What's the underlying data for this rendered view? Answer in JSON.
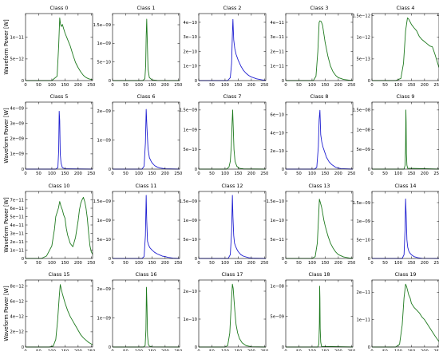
{
  "figure": {
    "ylabel": "Waveform Power [W]",
    "xlabel": "Range Bin",
    "xticks": [
      0,
      50,
      100,
      150,
      200,
      250
    ],
    "colors": {
      "green": "#1e7a1e",
      "blue": "#1f1fd1",
      "axis": "#000000"
    }
  },
  "chart_data": [
    {
      "type": "line",
      "title": "Class 0",
      "color": "green",
      "ylim": [
        0,
        1.55e-11
      ],
      "yticks": [
        5e-12,
        1e-11
      ],
      "ytick_labels": [
        "5e−12",
        "1e−11"
      ],
      "xlim": [
        0,
        255
      ],
      "x": [
        0,
        100,
        120,
        126,
        130,
        133,
        136,
        140,
        145,
        150,
        160,
        170,
        180,
        190,
        200,
        210,
        220,
        230,
        240,
        255
      ],
      "y": [
        0,
        0,
        1e-12,
        8e-12,
        1.45e-11,
        1.3e-11,
        1.25e-11,
        1.3e-11,
        1.2e-11,
        1.1e-11,
        9.5e-12,
        8e-12,
        6e-12,
        4.2e-12,
        3e-12,
        2e-12,
        1.2e-12,
        7e-13,
        4e-13,
        2e-13
      ]
    },
    {
      "type": "line",
      "title": "Class 1",
      "color": "green",
      "ylim": [
        0,
        1.8e-09
      ],
      "yticks": [
        5e-10,
        1e-09,
        1.5e-09
      ],
      "ytick_labels": [
        "5e−10",
        "1e−09",
        "1.5e−09"
      ],
      "xlim": [
        0,
        255
      ],
      "x": [
        0,
        115,
        123,
        126,
        128,
        130,
        132,
        135,
        140,
        150,
        170,
        255
      ],
      "y": [
        0,
        0,
        5e-11,
        4e-10,
        1.2e-09,
        1.65e-09,
        1.1e-09,
        3e-10,
        8e-11,
        2e-11,
        5e-12,
        0
      ]
    },
    {
      "type": "line",
      "title": "Class 2",
      "color": "blue",
      "ylim": [
        0,
        4.6e-10
      ],
      "yticks": [
        1e-10,
        2e-10,
        3e-10,
        4e-10
      ],
      "ytick_labels": [
        "1e−10",
        "2e−10",
        "3e−10",
        "4e−10"
      ],
      "xlim": [
        0,
        255
      ],
      "x": [
        0,
        110,
        120,
        125,
        128,
        130,
        133,
        137,
        142,
        150,
        160,
        170,
        180,
        190,
        200,
        220,
        240,
        255
      ],
      "y": [
        0,
        0,
        2e-11,
        1.2e-10,
        3.2e-10,
        4.2e-10,
        2.8e-10,
        2.2e-10,
        1.8e-10,
        1.4e-10,
        1e-10,
        7e-11,
        5e-11,
        3.5e-11,
        2.5e-11,
        1.2e-11,
        5e-12,
        2e-12
      ]
    },
    {
      "type": "line",
      "title": "Class 3",
      "color": "green",
      "ylim": [
        0,
        4.6e-11
      ],
      "yticks": [
        1e-11,
        2e-11,
        3e-11,
        4e-11
      ],
      "ytick_labels": [
        "1e−11",
        "2e−11",
        "3e−11",
        "4e−11"
      ],
      "xlim": [
        0,
        255
      ],
      "x": [
        0,
        105,
        115,
        122,
        127,
        130,
        135,
        140,
        145,
        150,
        160,
        170,
        180,
        190,
        200,
        220,
        240,
        255
      ],
      "y": [
        0,
        0,
        3e-12,
        2e-11,
        4e-11,
        4.1e-11,
        4.05e-11,
        3.8e-11,
        3.2e-11,
        2.6e-11,
        1.7e-11,
        1e-11,
        6e-12,
        3.5e-12,
        2e-12,
        8e-13,
        3e-13,
        1e-13
      ]
    },
    {
      "type": "line",
      "title": "Class 4",
      "color": "green",
      "ylim": [
        0,
        1.55e-12
      ],
      "yticks": [
        5e-13,
        1e-12,
        1.5e-12
      ],
      "ytick_labels": [
        "5e−13",
        "1e−12",
        "1.5e−12"
      ],
      "xlim": [
        0,
        255
      ],
      "x": [
        0,
        90,
        110,
        120,
        128,
        135,
        140,
        150,
        160,
        170,
        180,
        190,
        200,
        210,
        220,
        230,
        240,
        250,
        255
      ],
      "y": [
        0,
        0,
        5e-14,
        4e-13,
        1.15e-12,
        1.45e-12,
        1.42e-12,
        1.3e-12,
        1.22e-12,
        1.15e-12,
        1.02e-12,
        9.5e-13,
        9e-13,
        8.5e-13,
        8e-13,
        7.8e-13,
        6e-13,
        4e-13,
        3e-13
      ]
    },
    {
      "type": "line",
      "title": "Class 5",
      "color": "blue",
      "ylim": [
        0,
        4.4e-09
      ],
      "yticks": [
        1e-09,
        2e-09,
        3e-09,
        4e-09
      ],
      "ytick_labels": [
        "1e−09",
        "2e−09",
        "3e−09",
        "4e−09"
      ],
      "xlim": [
        0,
        255
      ],
      "x": [
        0,
        115,
        123,
        126,
        128,
        130,
        132,
        135,
        140,
        150,
        255
      ],
      "y": [
        0,
        0,
        1e-10,
        1.2e-09,
        3.8e-09,
        3.2e-09,
        1e-09,
        4e-10,
        1e-10,
        2e-11,
        0
      ]
    },
    {
      "type": "line",
      "title": "Class 6",
      "color": "blue",
      "ylim": [
        0,
        2.3e-09
      ],
      "yticks": [
        1e-09,
        2e-09
      ],
      "ytick_labels": [
        "1e−09",
        "2e−09"
      ],
      "xlim": [
        0,
        255
      ],
      "x": [
        0,
        112,
        120,
        125,
        128,
        131,
        135,
        140,
        145,
        150,
        160,
        170,
        180,
        200,
        255
      ],
      "y": [
        0,
        0,
        1e-10,
        9e-10,
        2.05e-09,
        1.4e-09,
        7e-10,
        4e-10,
        3e-10,
        2.2e-10,
        1.2e-10,
        7e-11,
        4e-11,
        1e-11,
        0
      ]
    },
    {
      "type": "line",
      "title": "Class 7",
      "color": "green",
      "ylim": [
        0,
        1.7e-09
      ],
      "yticks": [
        5e-10,
        1e-09,
        1.5e-09
      ],
      "ytick_labels": [
        "5e−10",
        "1e−09",
        "1.5e−09"
      ],
      "xlim": [
        0,
        255
      ],
      "x": [
        0,
        105,
        115,
        120,
        124,
        127,
        129,
        131,
        134,
        138,
        145,
        155,
        170,
        255
      ],
      "y": [
        0,
        0,
        5e-11,
        2e-10,
        6e-10,
        1.2e-09,
        1.5e-09,
        1.1e-09,
        5e-10,
        2e-10,
        7e-11,
        2e-11,
        5e-12,
        0
      ]
    },
    {
      "type": "line",
      "title": "Class 8",
      "color": "blue",
      "ylim": [
        0,
        7.4e-10
      ],
      "yticks": [
        2e-10,
        4e-10,
        6e-10
      ],
      "ytick_labels": [
        "2e−10",
        "4e−10",
        "6e−10"
      ],
      "xlim": [
        0,
        255
      ],
      "x": [
        0,
        110,
        118,
        124,
        127,
        130,
        133,
        137,
        142,
        148,
        155,
        165,
        175,
        190,
        210,
        255
      ],
      "y": [
        0,
        0,
        2e-11,
        2.5e-10,
        5.5e-10,
        6.5e-10,
        3.8e-10,
        3e-10,
        2.4e-10,
        1.9e-10,
        1.3e-10,
        8e-11,
        5e-11,
        2e-11,
        5e-12,
        0
      ]
    },
    {
      "type": "line",
      "title": "Class 9",
      "color": "green",
      "ylim": [
        0,
        1.7e-08
      ],
      "yticks": [
        5e-09,
        1e-08,
        1.5e-08
      ],
      "ytick_labels": [
        "5e−09",
        "1e−08",
        "1.5e−08"
      ],
      "xlim": [
        0,
        255
      ],
      "x": [
        0,
        122,
        126,
        128,
        129,
        130,
        131,
        133,
        136,
        255
      ],
      "y": [
        0,
        0,
        1e-09,
        6e-09,
        1.5e-08,
        1.2e-08,
        4e-09,
        1e-09,
        2e-10,
        0
      ]
    },
    {
      "type": "line",
      "title": "Class 10",
      "color": "green",
      "ylim": [
        0,
        8e-11
      ],
      "yticks": [
        1e-11,
        2e-11,
        3e-11,
        4e-11,
        5e-11,
        6e-11,
        7e-11
      ],
      "ytick_labels": [
        "1e−11",
        "2e−11",
        "3e−11",
        "4e−11",
        "5e−11",
        "6e−11",
        "7e−11"
      ],
      "xlim": [
        0,
        255
      ],
      "x": [
        0,
        60,
        80,
        100,
        110,
        115,
        120,
        125,
        130,
        135,
        140,
        145,
        150,
        155,
        160,
        170,
        180,
        190,
        200,
        205,
        210,
        215,
        220,
        225,
        230,
        235,
        240,
        245,
        250,
        255
      ],
      "y": [
        0,
        0,
        3e-12,
        1.5e-11,
        3.5e-11,
        5e-11,
        5.5e-11,
        6e-11,
        6.8e-11,
        6.2e-11,
        5.8e-11,
        5.2e-11,
        4.8e-11,
        3.6e-11,
        2.8e-11,
        1.8e-11,
        1.4e-11,
        2.5e-11,
        4.5e-11,
        5.8e-11,
        6.6e-11,
        7e-11,
        7.3e-11,
        6.8e-11,
        6e-11,
        4.8e-11,
        3e-11,
        1.5e-11,
        8e-12,
        5e-12
      ]
    },
    {
      "type": "line",
      "title": "Class 11",
      "color": "blue",
      "ylim": [
        0,
        1.75e-09
      ],
      "yticks": [
        5e-10,
        1e-09,
        1.5e-09
      ],
      "ytick_labels": [
        "5e−10",
        "1e−09",
        "1.5e−09"
      ],
      "xlim": [
        0,
        255
      ],
      "x": [
        0,
        112,
        120,
        125,
        128,
        130,
        133,
        137,
        142,
        150,
        160,
        170,
        180,
        190,
        200,
        210,
        220,
        230,
        240,
        255
      ],
      "y": [
        0,
        0,
        5e-11,
        6e-10,
        1.65e-09,
        1e-09,
        4.5e-10,
        3.5e-10,
        2.8e-10,
        2.2e-10,
        1.6e-10,
        1.2e-10,
        9e-11,
        6e-11,
        5e-11,
        3e-11,
        2e-11,
        1e-11,
        5e-12,
        0
      ]
    },
    {
      "type": "line",
      "title": "Class 12",
      "color": "blue",
      "ylim": [
        0,
        1.75e-09
      ],
      "yticks": [
        5e-10,
        1e-09,
        1.5e-09
      ],
      "ytick_labels": [
        "5e−10",
        "1e−09",
        "1.5e−09"
      ],
      "xlim": [
        0,
        255
      ],
      "x": [
        0,
        112,
        120,
        125,
        128,
        130,
        133,
        136,
        140,
        145,
        150,
        160,
        170,
        190,
        210,
        255
      ],
      "y": [
        0,
        0,
        1e-10,
        7e-10,
        1.65e-09,
        1.1e-09,
        6e-10,
        4e-10,
        3.2e-10,
        2.4e-10,
        1.8e-10,
        1e-10,
        6e-11,
        2e-11,
        5e-12,
        0
      ]
    },
    {
      "type": "line",
      "title": "Class 13",
      "color": "green",
      "ylim": [
        0,
        1.75e-10
      ],
      "yticks": [
        5e-11,
        1e-10,
        1.5e-10
      ],
      "ytick_labels": [
        "5e−11",
        "1e−10",
        "1.5e−10"
      ],
      "xlim": [
        0,
        255
      ],
      "x": [
        0,
        100,
        112,
        120,
        125,
        128,
        132,
        136,
        140,
        145,
        150,
        160,
        170,
        180,
        190,
        200,
        220,
        240,
        255
      ],
      "y": [
        0,
        0,
        5e-12,
        4e-11,
        1.1e-10,
        1.55e-10,
        1.45e-10,
        1.35e-10,
        1.2e-10,
        1e-10,
        8.5e-11,
        6e-11,
        4e-11,
        2.7e-11,
        1.7e-11,
        1e-11,
        4e-12,
        1.5e-12,
        1e-12
      ]
    },
    {
      "type": "line",
      "title": "Class 14",
      "color": "blue",
      "ylim": [
        0,
        1.8e-09
      ],
      "yticks": [
        5e-10,
        1e-09,
        1.5e-09
      ],
      "ytick_labels": [
        "5e−10",
        "1e−09",
        "1.5e−09"
      ],
      "xlim": [
        0,
        255
      ],
      "x": [
        0,
        115,
        122,
        126,
        128,
        130,
        133,
        136,
        140,
        145,
        150,
        160,
        175,
        190,
        255
      ],
      "y": [
        0,
        0,
        1e-10,
        8e-10,
        1.6e-09,
        1.2e-09,
        5e-10,
        3e-10,
        2e-10,
        1.4e-10,
        1e-10,
        5e-11,
        2e-11,
        5e-12,
        0
      ]
    },
    {
      "type": "line",
      "title": "Class 15",
      "color": "green",
      "ylim": [
        0,
        8.8e-12
      ],
      "yticks": [
        2e-12,
        4e-12,
        6e-12,
        8e-12
      ],
      "ytick_labels": [
        "2e−12",
        "4e−12",
        "6e−12",
        "8e−12"
      ],
      "xlim": [
        0,
        255
      ],
      "x": [
        0,
        90,
        105,
        115,
        122,
        128,
        132,
        136,
        140,
        145,
        150,
        160,
        170,
        180,
        190,
        200,
        210,
        220,
        230,
        240,
        255
      ],
      "y": [
        0,
        0,
        1e-13,
        1e-12,
        3.5e-12,
        6.5e-12,
        8.2e-12,
        7.6e-12,
        7e-12,
        6.4e-12,
        5.8e-12,
        4.8e-12,
        4e-12,
        3.4e-12,
        2.8e-12,
        2.2e-12,
        1.6e-12,
        1.2e-12,
        9e-13,
        6e-13,
        3e-13
      ]
    },
    {
      "type": "line",
      "title": "Class 16",
      "color": "green",
      "ylim": [
        0,
        2.3e-09
      ],
      "yticks": [
        1e-09,
        2e-09
      ],
      "ytick_labels": [
        "1e−09",
        "2e−09"
      ],
      "xlim": [
        0,
        255
      ],
      "x": [
        0,
        118,
        124,
        127,
        129,
        131,
        133,
        136,
        140,
        150,
        255
      ],
      "y": [
        0,
        0,
        5e-11,
        6e-10,
        2.05e-09,
        1.4e-09,
        4e-10,
        1e-10,
        3e-11,
        5e-12,
        0
      ]
    },
    {
      "type": "line",
      "title": "Class 17",
      "color": "green",
      "ylim": [
        0,
        2.4e-10
      ],
      "yticks": [
        1e-10,
        2e-10
      ],
      "ytick_labels": [
        "1e−10",
        "2e−10"
      ],
      "xlim": [
        0,
        255
      ],
      "x": [
        0,
        100,
        110,
        118,
        124,
        128,
        131,
        134,
        138,
        142,
        148,
        155,
        165,
        180,
        200,
        255
      ],
      "y": [
        0,
        0,
        5e-12,
        5e-11,
        1.6e-10,
        2.25e-10,
        2.1e-10,
        1.7e-10,
        1.2e-10,
        8e-11,
        5e-11,
        3e-11,
        1.5e-11,
        5e-12,
        1e-12,
        0
      ]
    },
    {
      "type": "line",
      "title": "Class 18",
      "color": "green",
      "ylim": [
        0,
        1.1e-08
      ],
      "yticks": [
        5e-09,
        1e-08
      ],
      "ytick_labels": [
        "5e−09",
        "1e−08"
      ],
      "xlim": [
        0,
        255
      ],
      "x": [
        0,
        122,
        126,
        128,
        129,
        130,
        131,
        133,
        136,
        255
      ],
      "y": [
        0,
        0,
        5e-10,
        4e-09,
        1e-08,
        8e-09,
        3e-09,
        8e-10,
        1e-10,
        0
      ]
    },
    {
      "type": "line",
      "title": "Class 19",
      "color": "green",
      "ylim": [
        0,
        2.45e-11
      ],
      "yticks": [
        1e-11,
        2e-11
      ],
      "ytick_labels": [
        "1e−11",
        "2e−11"
      ],
      "xlim": [
        0,
        255
      ],
      "x": [
        0,
        90,
        105,
        115,
        122,
        128,
        132,
        136,
        140,
        145,
        150,
        160,
        170,
        180,
        190,
        200,
        210,
        220,
        230,
        240,
        255
      ],
      "y": [
        0,
        0,
        1e-12,
        8e-12,
        1.8e-11,
        2.3e-11,
        2.2e-11,
        2.05e-11,
        1.9e-11,
        1.8e-11,
        1.6e-11,
        1.45e-11,
        1.35e-11,
        1.25e-11,
        1.1e-11,
        1e-11,
        8.5e-12,
        7e-12,
        5.5e-12,
        4e-12,
        2e-12
      ]
    }
  ]
}
